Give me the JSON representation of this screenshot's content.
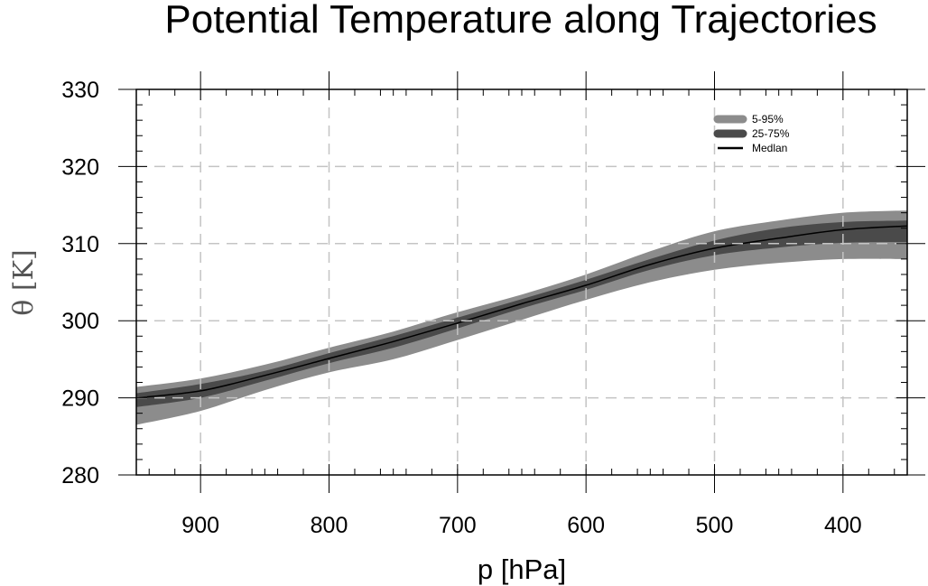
{
  "chart_data": {
    "type": "area",
    "title": "Potential Temperature along Trajectories",
    "xlabel": "p [hPa]",
    "ylabel": "θ  [K]",
    "xlim": [
      950,
      350
    ],
    "ylim": [
      280,
      330
    ],
    "x_reversed": true,
    "x_ticks": [
      900,
      800,
      700,
      600,
      500,
      400
    ],
    "x_tick_labels": [
      "900",
      "800",
      "700",
      "600",
      "500",
      "400"
    ],
    "y_ticks": [
      280,
      290,
      300,
      310,
      320,
      330
    ],
    "y_tick_labels": [
      "280",
      "290",
      "300",
      "310",
      "320",
      "330"
    ],
    "grid": true,
    "legend_position": "top-right",
    "x": [
      950,
      900,
      850,
      800,
      750,
      700,
      650,
      600,
      550,
      500,
      450,
      400,
      350
    ],
    "series": [
      {
        "name": "5-95%",
        "kind": "band",
        "color": "#8c8c8c",
        "lower": [
          286.5,
          288.3,
          291.0,
          293.3,
          295.0,
          297.5,
          300.1,
          302.7,
          305.0,
          306.6,
          307.5,
          308.0,
          308.0
        ],
        "upper": [
          291.4,
          292.5,
          294.3,
          296.5,
          298.6,
          301.1,
          303.4,
          306.0,
          309.0,
          311.6,
          313.0,
          314.0,
          314.3
        ]
      },
      {
        "name": "25-75%",
        "kind": "band",
        "color": "#4a4a4a",
        "lower": [
          288.8,
          290.0,
          292.2,
          294.5,
          296.5,
          299.0,
          301.6,
          304.0,
          306.6,
          308.5,
          309.5,
          310.1,
          310.2
        ],
        "upper": [
          290.6,
          291.8,
          293.5,
          295.8,
          298.0,
          300.4,
          302.8,
          305.3,
          308.0,
          310.4,
          312.0,
          312.8,
          313.0
        ]
      },
      {
        "name": "Median",
        "kind": "line",
        "color": "#000000",
        "values": [
          290.0,
          290.9,
          292.9,
          295.1,
          297.3,
          299.7,
          302.2,
          304.6,
          307.3,
          309.4,
          310.7,
          311.8,
          312.3
        ]
      }
    ],
    "legend": [
      "5-95%",
      "25-75%",
      "Medlan"
    ]
  }
}
